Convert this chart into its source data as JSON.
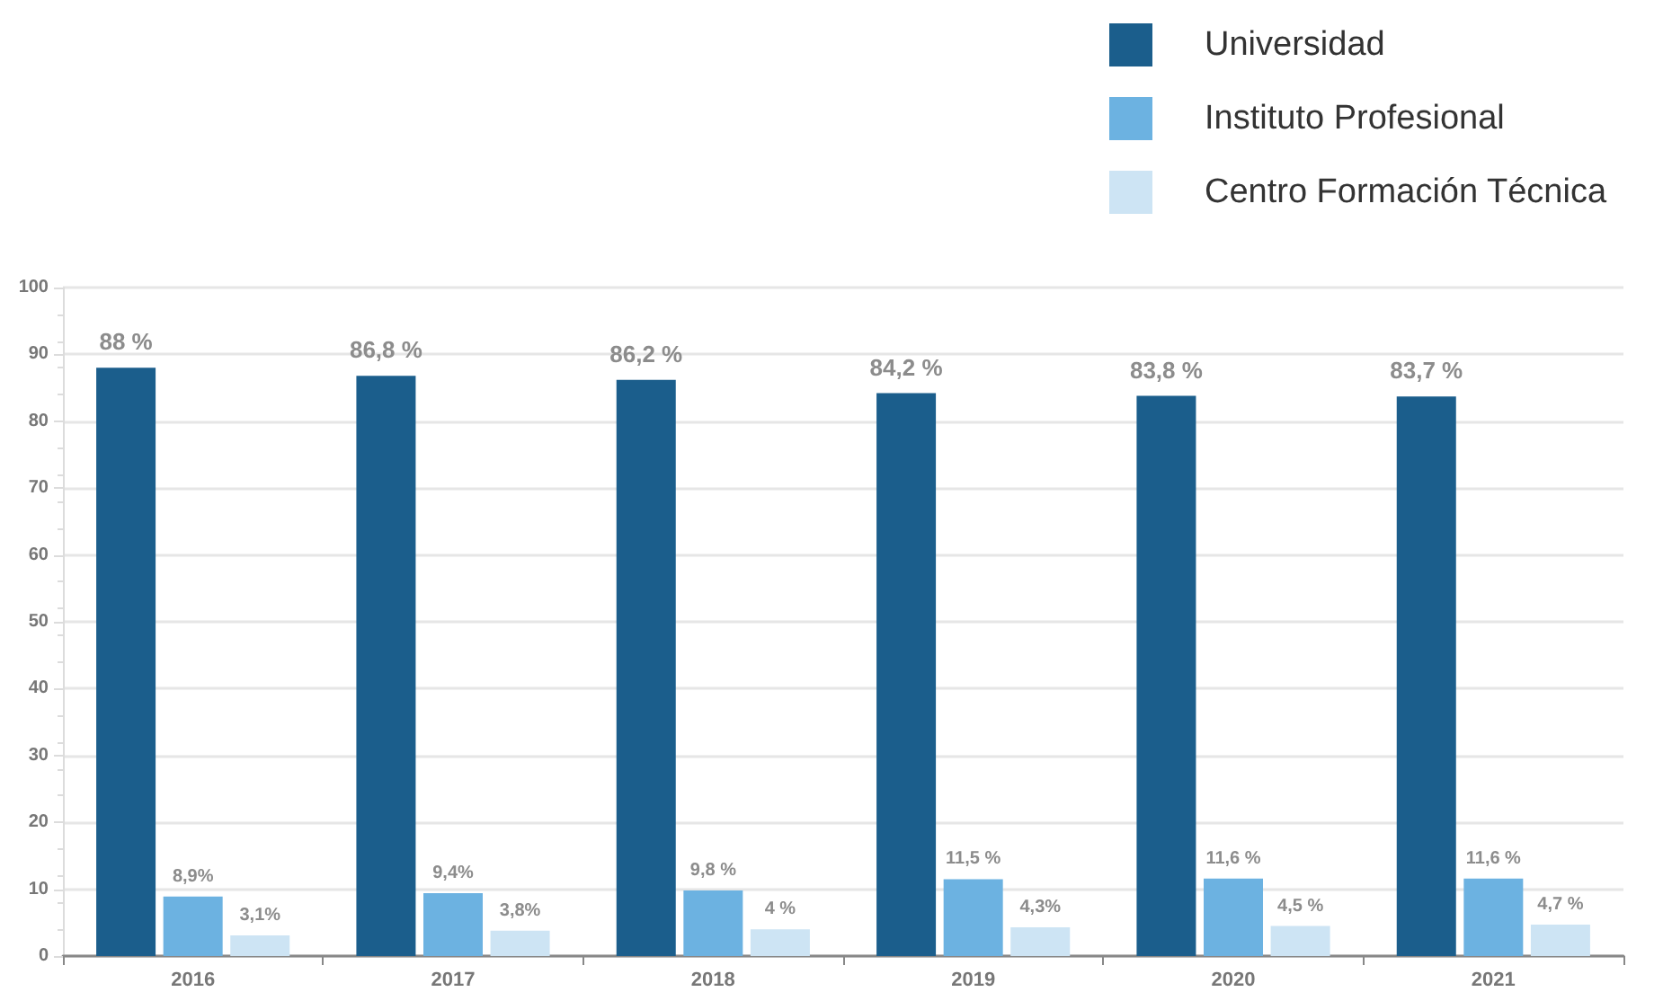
{
  "chart_data": {
    "type": "bar",
    "categories": [
      "2016",
      "2017",
      "2018",
      "2019",
      "2020",
      "2021"
    ],
    "series": [
      {
        "name": "Universidad",
        "color": "#1b5e8c",
        "values": [
          88,
          86.8,
          86.2,
          84.2,
          83.8,
          83.7
        ],
        "value_labels": [
          "88 %",
          "86,8 %",
          "86,2 %",
          "84,2 %",
          "83,8 %",
          "83,7 %"
        ]
      },
      {
        "name": "Instituto Profesional",
        "color": "#6cb2e1",
        "values": [
          8.9,
          9.4,
          9.8,
          11.5,
          11.6,
          11.6
        ],
        "value_labels": [
          "8,9%",
          "9,4%",
          "9,8 %",
          "11,5 %",
          "11,6 %",
          "11,6 %"
        ]
      },
      {
        "name": "Centro Formación Técnica",
        "color": "#cde4f4",
        "values": [
          3.1,
          3.8,
          4,
          4.3,
          4.5,
          4.7
        ],
        "value_labels": [
          "3,1%",
          "3,8%",
          "4 %",
          "4,3%",
          "4,5 %",
          "4,7 %"
        ]
      }
    ],
    "ylim": [
      0,
      100
    ],
    "yticks": [
      0,
      10,
      20,
      30,
      40,
      50,
      60,
      70,
      80,
      90,
      100
    ],
    "grid": "y",
    "legend": "top right"
  }
}
